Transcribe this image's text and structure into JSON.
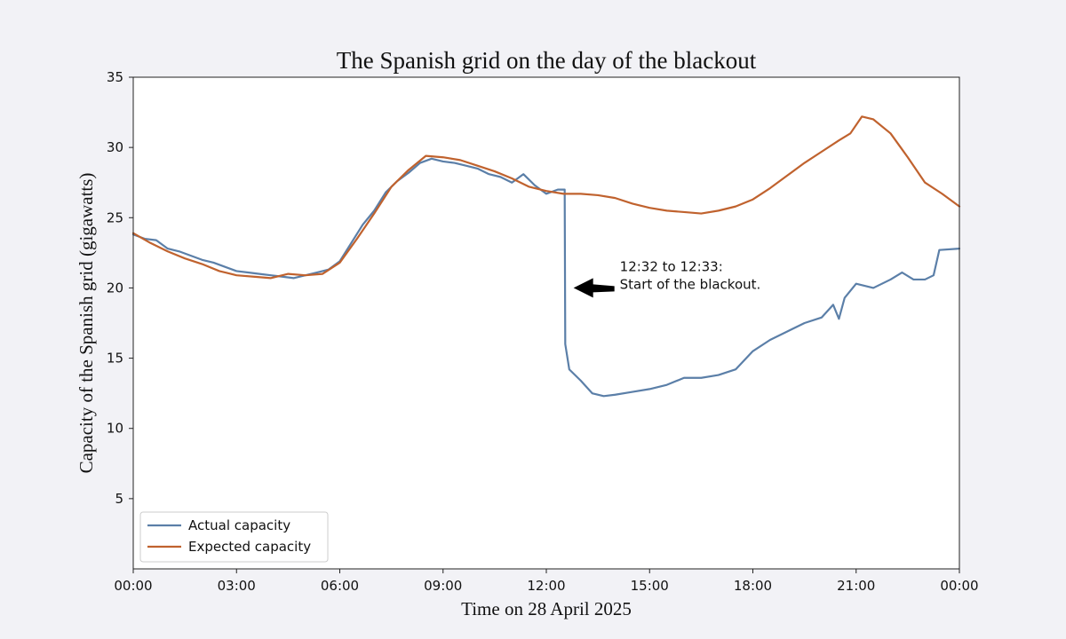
{
  "chart_data": {
    "type": "line",
    "title": "The Spanish grid on the day of the blackout",
    "xlabel": "Time on 28 April 2025",
    "ylabel": "Capacity of the Spanish grid (gigawatts)",
    "xlim": [
      "00:00",
      "24:00"
    ],
    "ylim": [
      0,
      35
    ],
    "x_ticks": [
      "00:00",
      "03:00",
      "06:00",
      "09:00",
      "12:00",
      "15:00",
      "18:00",
      "21:00",
      "00:00"
    ],
    "y_ticks": [
      5,
      10,
      15,
      20,
      25,
      30,
      35
    ],
    "grid": false,
    "legend_position": "lower-left",
    "series": [
      {
        "name": "Actual capacity",
        "color": "#5b7fa8",
        "points": [
          [
            "00:00",
            23.8
          ],
          [
            "00:20",
            23.5
          ],
          [
            "00:40",
            23.4
          ],
          [
            "01:00",
            22.8
          ],
          [
            "01:20",
            22.6
          ],
          [
            "01:40",
            22.3
          ],
          [
            "02:00",
            22.0
          ],
          [
            "02:20",
            21.8
          ],
          [
            "02:40",
            21.5
          ],
          [
            "03:00",
            21.2
          ],
          [
            "03:20",
            21.1
          ],
          [
            "03:40",
            21.0
          ],
          [
            "04:00",
            20.9
          ],
          [
            "04:20",
            20.8
          ],
          [
            "04:40",
            20.7
          ],
          [
            "05:00",
            20.9
          ],
          [
            "05:20",
            21.1
          ],
          [
            "05:40",
            21.3
          ],
          [
            "06:00",
            21.9
          ],
          [
            "06:20",
            23.2
          ],
          [
            "06:40",
            24.5
          ],
          [
            "07:00",
            25.5
          ],
          [
            "07:20",
            26.8
          ],
          [
            "07:40",
            27.6
          ],
          [
            "08:00",
            28.2
          ],
          [
            "08:20",
            28.9
          ],
          [
            "08:40",
            29.2
          ],
          [
            "09:00",
            29.0
          ],
          [
            "09:20",
            28.9
          ],
          [
            "09:40",
            28.7
          ],
          [
            "10:00",
            28.5
          ],
          [
            "10:20",
            28.1
          ],
          [
            "10:40",
            27.9
          ],
          [
            "11:00",
            27.5
          ],
          [
            "11:20",
            28.1
          ],
          [
            "11:40",
            27.3
          ],
          [
            "12:00",
            26.7
          ],
          [
            "12:20",
            27.0
          ],
          [
            "12:32",
            27.0
          ],
          [
            "12:33",
            16.0
          ],
          [
            "12:40",
            14.2
          ],
          [
            "13:00",
            13.4
          ],
          [
            "13:20",
            12.5
          ],
          [
            "13:40",
            12.3
          ],
          [
            "14:00",
            12.4
          ],
          [
            "14:30",
            12.6
          ],
          [
            "15:00",
            12.8
          ],
          [
            "15:30",
            13.1
          ],
          [
            "16:00",
            13.6
          ],
          [
            "16:30",
            13.6
          ],
          [
            "17:00",
            13.8
          ],
          [
            "17:30",
            14.2
          ],
          [
            "18:00",
            15.5
          ],
          [
            "18:30",
            16.3
          ],
          [
            "19:00",
            16.9
          ],
          [
            "19:30",
            17.5
          ],
          [
            "20:00",
            17.9
          ],
          [
            "20:20",
            18.8
          ],
          [
            "20:30",
            17.8
          ],
          [
            "20:40",
            19.3
          ],
          [
            "21:00",
            20.3
          ],
          [
            "21:30",
            20.0
          ],
          [
            "22:00",
            20.6
          ],
          [
            "22:20",
            21.1
          ],
          [
            "22:40",
            20.6
          ],
          [
            "23:00",
            20.6
          ],
          [
            "23:15",
            20.9
          ],
          [
            "23:25",
            22.7
          ],
          [
            "24:00",
            22.8
          ]
        ]
      },
      {
        "name": "Expected capacity",
        "color": "#c0622e",
        "points": [
          [
            "00:00",
            23.9
          ],
          [
            "00:30",
            23.2
          ],
          [
            "01:00",
            22.6
          ],
          [
            "01:30",
            22.1
          ],
          [
            "02:00",
            21.7
          ],
          [
            "02:30",
            21.2
          ],
          [
            "03:00",
            20.9
          ],
          [
            "03:30",
            20.8
          ],
          [
            "04:00",
            20.7
          ],
          [
            "04:30",
            21.0
          ],
          [
            "05:00",
            20.9
          ],
          [
            "05:30",
            21.0
          ],
          [
            "06:00",
            21.8
          ],
          [
            "06:30",
            23.5
          ],
          [
            "07:00",
            25.3
          ],
          [
            "07:30",
            27.2
          ],
          [
            "08:00",
            28.4
          ],
          [
            "08:30",
            29.4
          ],
          [
            "09:00",
            29.3
          ],
          [
            "09:30",
            29.1
          ],
          [
            "10:00",
            28.7
          ],
          [
            "10:30",
            28.3
          ],
          [
            "11:00",
            27.8
          ],
          [
            "11:30",
            27.2
          ],
          [
            "12:00",
            26.9
          ],
          [
            "12:30",
            26.7
          ],
          [
            "13:00",
            26.7
          ],
          [
            "13:30",
            26.6
          ],
          [
            "14:00",
            26.4
          ],
          [
            "14:30",
            26.0
          ],
          [
            "15:00",
            25.7
          ],
          [
            "15:30",
            25.5
          ],
          [
            "16:00",
            25.4
          ],
          [
            "16:30",
            25.3
          ],
          [
            "17:00",
            25.5
          ],
          [
            "17:30",
            25.8
          ],
          [
            "18:00",
            26.3
          ],
          [
            "18:30",
            27.1
          ],
          [
            "19:00",
            28.0
          ],
          [
            "19:30",
            28.9
          ],
          [
            "20:00",
            29.7
          ],
          [
            "20:30",
            30.5
          ],
          [
            "20:50",
            31.0
          ],
          [
            "21:10",
            32.2
          ],
          [
            "21:30",
            32.0
          ],
          [
            "22:00",
            31.0
          ],
          [
            "22:30",
            29.3
          ],
          [
            "23:00",
            27.5
          ],
          [
            "23:30",
            26.7
          ],
          [
            "24:00",
            25.8
          ]
        ]
      }
    ],
    "annotation": {
      "line1": "12:32 to 12:33:",
      "line2": "Start of the blackout.",
      "arrow_target": [
        "12:32",
        20.0
      ]
    }
  }
}
